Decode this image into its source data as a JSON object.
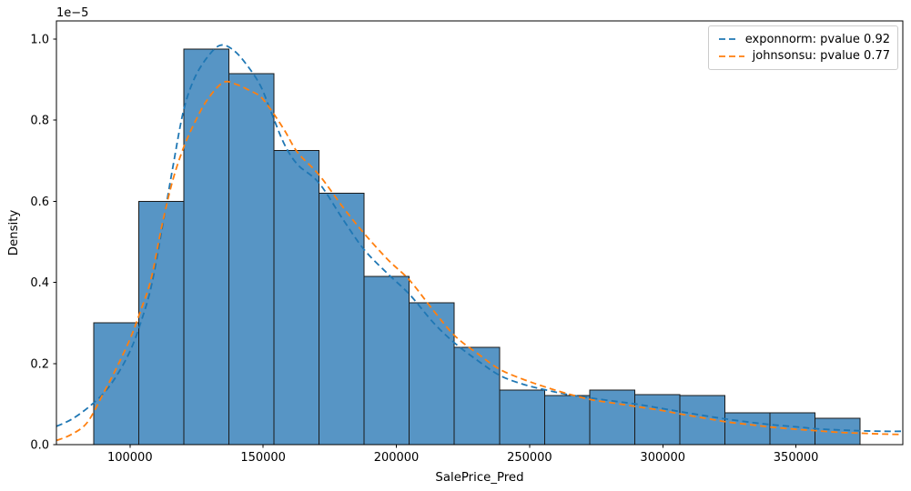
{
  "figure": {
    "y_offset_label": "1e−5",
    "ylabel": "Density",
    "xlabel": "SalePrice_Pred"
  },
  "legend": {
    "items": [
      {
        "name": "exponnorm",
        "label": "exponnorm: pvalue 0.92",
        "color": "#1f77b4"
      },
      {
        "name": "johnsonsu",
        "label": "johnsonsu: pvalue 0.77",
        "color": "#ff7f0e"
      }
    ]
  },
  "chart_data": {
    "type": "histogram+line",
    "title": "",
    "xlabel": "SalePrice_Pred",
    "ylabel": "Density",
    "y_unit_multiplier": "1e-5",
    "xlim": [
      72400,
      390100
    ],
    "ylim": [
      0,
      1.0448
    ],
    "grid": false,
    "x_ticks": {
      "values": [
        100000,
        150000,
        200000,
        250000,
        300000,
        350000
      ],
      "labels": [
        "100000",
        "150000",
        "200000",
        "250000",
        "300000",
        "350000"
      ]
    },
    "y_ticks": {
      "values": [
        0,
        0.2,
        0.4,
        0.6,
        0.8,
        1.0
      ],
      "labels": [
        "0.0",
        "0.2",
        "0.4",
        "0.6",
        "0.8",
        "1.0"
      ]
    },
    "histogram": {
      "bin_edges": [
        86450,
        103350,
        120250,
        137200,
        154100,
        171000,
        187950,
        204850,
        221750,
        238700,
        255600,
        272500,
        289450,
        306350,
        323250,
        340200,
        357100,
        374000
      ],
      "densities_1e5": [
        0.3,
        0.6,
        0.975,
        0.915,
        0.725,
        0.62,
        0.415,
        0.35,
        0.24,
        0.134,
        0.121,
        0.134,
        0.123,
        0.121,
        0.078,
        0.078,
        0.065
      ],
      "fill_color": "#5795c5",
      "edge_color": "#1a1a1a"
    },
    "series": [
      {
        "name": "exponnorm: pvalue 0.92",
        "color": "#1f77b4",
        "style": "dashed",
        "points": [
          [
            72400,
            0.045
          ],
          [
            78000,
            0.062
          ],
          [
            84000,
            0.09
          ],
          [
            90000,
            0.126
          ],
          [
            95000,
            0.17
          ],
          [
            100000,
            0.23
          ],
          [
            104000,
            0.3
          ],
          [
            108000,
            0.39
          ],
          [
            112000,
            0.53
          ],
          [
            116000,
            0.68
          ],
          [
            120000,
            0.82
          ],
          [
            124000,
            0.9
          ],
          [
            129000,
            0.955
          ],
          [
            134000,
            0.985
          ],
          [
            139000,
            0.972
          ],
          [
            144000,
            0.935
          ],
          [
            149000,
            0.885
          ],
          [
            153000,
            0.82
          ],
          [
            158000,
            0.74
          ],
          [
            163000,
            0.69
          ],
          [
            171000,
            0.645
          ],
          [
            180000,
            0.555
          ],
          [
            188000,
            0.48
          ],
          [
            197000,
            0.42
          ],
          [
            205000,
            0.37
          ],
          [
            214000,
            0.3
          ],
          [
            222000,
            0.25
          ],
          [
            231000,
            0.205
          ],
          [
            239000,
            0.17
          ],
          [
            248000,
            0.148
          ],
          [
            256000,
            0.135
          ],
          [
            264000,
            0.124
          ],
          [
            273000,
            0.115
          ],
          [
            282000,
            0.107
          ],
          [
            290000,
            0.1
          ],
          [
            299000,
            0.09
          ],
          [
            307000,
            0.081
          ],
          [
            316000,
            0.071
          ],
          [
            324000,
            0.063
          ],
          [
            333000,
            0.055
          ],
          [
            341000,
            0.049
          ],
          [
            350000,
            0.044
          ],
          [
            358000,
            0.039
          ],
          [
            367000,
            0.036
          ],
          [
            375000,
            0.034
          ],
          [
            383000,
            0.033
          ],
          [
            390100,
            0.033
          ]
        ]
      },
      {
        "name": "johnsonsu: pvalue 0.77",
        "color": "#ff7f0e",
        "style": "dashed",
        "points": [
          [
            72400,
            0.01
          ],
          [
            78000,
            0.025
          ],
          [
            84000,
            0.055
          ],
          [
            90000,
            0.126
          ],
          [
            95000,
            0.19
          ],
          [
            100000,
            0.26
          ],
          [
            104000,
            0.33
          ],
          [
            108000,
            0.41
          ],
          [
            112000,
            0.54
          ],
          [
            116000,
            0.65
          ],
          [
            120000,
            0.73
          ],
          [
            124000,
            0.79
          ],
          [
            129000,
            0.85
          ],
          [
            135000,
            0.893
          ],
          [
            140000,
            0.888
          ],
          [
            145000,
            0.873
          ],
          [
            149000,
            0.858
          ],
          [
            153000,
            0.825
          ],
          [
            158000,
            0.775
          ],
          [
            163000,
            0.72
          ],
          [
            171000,
            0.665
          ],
          [
            180000,
            0.585
          ],
          [
            188000,
            0.52
          ],
          [
            197000,
            0.455
          ],
          [
            205000,
            0.405
          ],
          [
            214000,
            0.33
          ],
          [
            222000,
            0.268
          ],
          [
            231000,
            0.222
          ],
          [
            239000,
            0.185
          ],
          [
            248000,
            0.16
          ],
          [
            256000,
            0.142
          ],
          [
            264000,
            0.126
          ],
          [
            273000,
            0.111
          ],
          [
            282000,
            0.102
          ],
          [
            290000,
            0.094
          ],
          [
            299000,
            0.085
          ],
          [
            307000,
            0.075
          ],
          [
            316000,
            0.065
          ],
          [
            324000,
            0.056
          ],
          [
            333000,
            0.049
          ],
          [
            341000,
            0.043
          ],
          [
            350000,
            0.038
          ],
          [
            358000,
            0.034
          ],
          [
            367000,
            0.03
          ],
          [
            375000,
            0.028
          ],
          [
            383000,
            0.026
          ],
          [
            390100,
            0.025
          ]
        ]
      }
    ]
  }
}
